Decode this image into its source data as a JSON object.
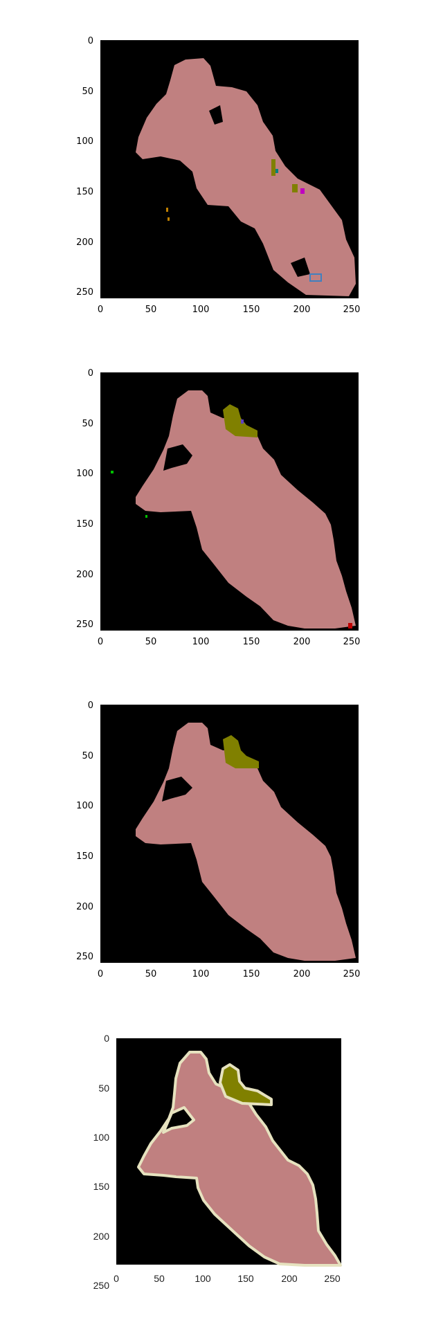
{
  "figure": {
    "background": "#ffffff",
    "panels": [
      {
        "id": "p1",
        "description": "noisy segmentation mask output",
        "xticks": [
          "0",
          "50",
          "100",
          "150",
          "200",
          "250"
        ],
        "yticks": [
          "0",
          "50",
          "100",
          "150",
          "200",
          "250"
        ]
      },
      {
        "id": "p2",
        "description": "intermediate segmentation mask",
        "xticks": [
          "0",
          "50",
          "100",
          "150",
          "200",
          "250"
        ],
        "yticks": [
          "0",
          "50",
          "100",
          "150",
          "200",
          "250"
        ]
      },
      {
        "id": "p3",
        "description": "refined segmentation mask",
        "xticks": [
          "0",
          "50",
          "100",
          "150",
          "200",
          "250"
        ],
        "yticks": [
          "0",
          "50",
          "100",
          "150",
          "200",
          "250"
        ]
      },
      {
        "id": "p4",
        "description": "ground-truth segmentation mask with outline",
        "xticks": [
          "0",
          "50",
          "100",
          "150",
          "200",
          "250"
        ],
        "yticks": [
          "0",
          "50",
          "100",
          "150",
          "200",
          "250"
        ]
      }
    ]
  },
  "colors": {
    "mask_background": "#000000",
    "person": "#c08080",
    "hair": "#808000",
    "outline": "#e6e2bf"
  }
}
